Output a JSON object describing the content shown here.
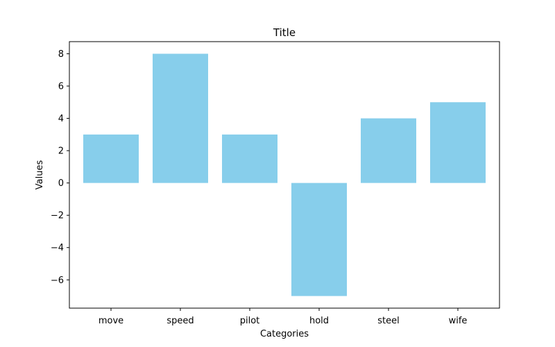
{
  "chart_data": {
    "type": "bar",
    "title": "Title",
    "xlabel": "Categories",
    "ylabel": "Values",
    "categories": [
      "move",
      "speed",
      "pilot",
      "hold",
      "steel",
      "wife"
    ],
    "values": [
      3,
      8,
      3,
      -7,
      4,
      5
    ],
    "ylim": [
      -7.75,
      8.75
    ],
    "yticks": [
      -6,
      -4,
      -2,
      0,
      2,
      4,
      6,
      8
    ],
    "ytick_labels": [
      "−6",
      "−4",
      "−2",
      "0",
      "2",
      "4",
      "6",
      "8"
    ],
    "grid": false,
    "bar_color": "#87ceeb"
  }
}
